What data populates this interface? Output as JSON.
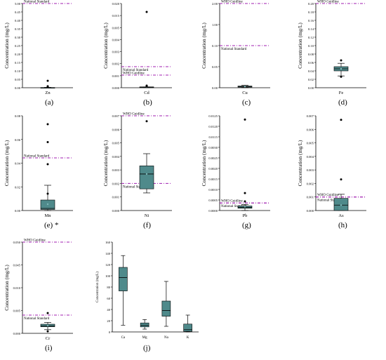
{
  "colors": {
    "box": "#4f8a8b",
    "guide": "#a01fb0",
    "outlier": "#000000",
    "mean": "#7fb8b8"
  },
  "y_title": "Concentration (mg/L)",
  "chart_data": [
    {
      "type": "box",
      "panel_label": "(a)",
      "category": "Zn",
      "ylim": [
        0,
        5
      ],
      "ticks": [
        "0.00",
        "0.05",
        "0.10",
        "0.15",
        "0.20",
        "0.25",
        "0.30",
        "0.35",
        "0.40",
        "0.45",
        "5.00"
      ],
      "box": {
        "whisker_low": 0.0,
        "q1": 0.003,
        "median": 0.005,
        "q3": 0.012,
        "whisker_high": 0.02,
        "mean": 0.012
      },
      "outliers": [
        0.035,
        0.09,
        0.41
      ],
      "guidelines": [
        {
          "label": "National Standard",
          "value": 5.0
        }
      ]
    },
    {
      "type": "box",
      "panel_label": "(b)",
      "category": "Cd",
      "ylim": [
        0,
        0.02
      ],
      "ticks": [
        "0.000",
        "0.001",
        "0.002",
        "0.003",
        "0.004",
        "0.005",
        "0.015",
        "0.020"
      ],
      "box": {
        "whisker_low": 0.0,
        "q1": 0.0,
        "median": 0.0001,
        "q3": 0.0002,
        "whisker_high": 0.0002,
        "mean": 0.0002
      },
      "outliers": [
        0.0003,
        0.0004,
        0.0005,
        0.018
      ],
      "guidelines": [
        {
          "label": "WHO Guidline",
          "value": 0.003
        },
        {
          "label": "National Standard",
          "value": 0.005
        }
      ]
    },
    {
      "type": "box",
      "panel_label": "(c)",
      "category": "Cu",
      "ylim": [
        0,
        2
      ],
      "ticks": [
        "0.00",
        "0.05",
        "0.10",
        "1.00",
        "2.00"
      ],
      "box": {
        "whisker_low": 0.001,
        "q1": 0.015,
        "median": 0.025,
        "q3": 0.04,
        "whisker_high": 0.06,
        "mean": 0.028
      },
      "outliers": [],
      "guidelines": [
        {
          "label": "WHO Guidline",
          "value": 2.0
        },
        {
          "label": "National Standard",
          "value": 1.0
        }
      ]
    },
    {
      "type": "box",
      "panel_label": "(d)",
      "category": "Fe",
      "ylim": [
        0,
        0.2
      ],
      "ticks": [
        "0.00",
        "0.02",
        "0.04",
        "0.06",
        "0.08",
        "0.10",
        "0.12",
        "0.14",
        "0.16",
        "0.18",
        "0.20"
      ],
      "box": {
        "whisker_low": 0.028,
        "q1": 0.04,
        "median": 0.045,
        "q3": 0.05,
        "whisker_high": 0.058,
        "mean": 0.045
      },
      "outliers": [
        0.026,
        0.065
      ],
      "guidelines": [
        {
          "label": "WHO Guidline",
          "value": 0.2
        }
      ]
    },
    {
      "type": "box",
      "panel_label": "(e)",
      "label_suffix": "*",
      "category": "Mn",
      "ylim": [
        0,
        0.09
      ],
      "ticks": [
        "0.00",
        "0.02",
        "0.04",
        "0.06",
        "0.08"
      ],
      "box": {
        "whisker_low": 0.0,
        "q1": 0.001,
        "median": 0.002,
        "q3": 0.01,
        "whisker_high": 0.024,
        "mean": 0.006
      },
      "outliers": [
        0.016,
        0.044,
        0.065,
        0.082
      ],
      "guidelines": [
        {
          "label": "National Standard",
          "value": 0.05
        }
      ]
    },
    {
      "type": "box",
      "panel_label": "(f)",
      "category": "Ni",
      "ylim": [
        0,
        0.007
      ],
      "ticks": [
        "0.000",
        "0.001",
        "0.002",
        "0.003",
        "0.004",
        "0.005",
        "0.006",
        "0.007"
      ],
      "box": {
        "whisker_low": 0.0013,
        "q1": 0.0016,
        "median": 0.0027,
        "q3": 0.0033,
        "whisker_high": 0.0042,
        "mean": 0.0027
      },
      "outliers": [
        0.0066
      ],
      "guidelines": [
        {
          "label": "WHO Guidline",
          "value": 0.007
        },
        {
          "label": "National Standard",
          "value": 0.002
        }
      ]
    },
    {
      "type": "box",
      "panel_label": "(g)",
      "category": "Pb",
      "ylim": [
        0,
        0.0125
      ],
      "ticks": [
        "0.0000",
        "0.0005",
        "0.0010",
        "0.0015",
        "0.0020",
        "0.0025",
        "0.0030",
        "0.0115",
        "0.0120",
        "0.0125"
      ],
      "box": {
        "whisker_low": 0.0,
        "q1": 0.0003,
        "median": 0.0004,
        "q3": 0.0006,
        "whisker_high": 0.0008,
        "mean": 0.0005
      },
      "outliers": [
        0.0012,
        0.0023,
        0.012
      ],
      "guidelines": [
        {
          "label": "WHO Guidline",
          "value": 0.001
        },
        {
          "label": "National Standard",
          "value": 0.001
        }
      ]
    },
    {
      "type": "box",
      "panel_label": "(h)",
      "category": "As",
      "ylim": [
        0,
        0.007
      ],
      "ticks": [
        "0.000",
        "0.001",
        "0.002",
        "0.003",
        "0.004",
        "0.005",
        "0.006",
        "0.007"
      ],
      "box": {
        "whisker_low": 0.0,
        "q1": 0.0,
        "median": 0.0004,
        "q3": 0.0009,
        "whisker_high": 0.0012,
        "mean": 0.0004
      },
      "outliers": [
        0.0023,
        0.0067
      ],
      "guidelines": [
        {
          "label": "WHO Guidline",
          "value": 0.001
        },
        {
          "label": "National Standard",
          "value": 0.001
        }
      ]
    },
    {
      "type": "box",
      "panel_label": "(i)",
      "category": "Cr",
      "ylim": [
        0,
        0.05
      ],
      "ticks": [
        "0.000",
        "0.005",
        "0.010",
        "0.045",
        "0.050"
      ],
      "box": {
        "whisker_low": 0.002,
        "q1": 0.0036,
        "median": 0.004,
        "q3": 0.005,
        "whisker_high": 0.006,
        "mean": 0.0043
      },
      "outliers": [
        0.0011,
        0.0111
      ],
      "guidelines": [
        {
          "label": "WHO Guidline",
          "value": 0.05
        },
        {
          "label": "National Standard",
          "value": 0.01
        }
      ]
    },
    {
      "type": "box",
      "panel_label": "(j)",
      "categories": [
        "Ca",
        "Mg",
        "Na",
        "K"
      ],
      "ylim": [
        0,
        160
      ],
      "ticks": [
        "0",
        "20",
        "40",
        "60",
        "80",
        "100",
        "120",
        "140",
        "160"
      ],
      "boxes": [
        {
          "whisker_low": 12,
          "q1": 73,
          "median": 97,
          "q3": 115,
          "whisker_high": 136
        },
        {
          "whisker_low": 5,
          "q1": 9,
          "median": 12,
          "q3": 16,
          "whisker_high": 22
        },
        {
          "whisker_low": 10,
          "q1": 28,
          "median": 38,
          "q3": 55,
          "whisker_high": 90
        },
        {
          "whisker_low": 0,
          "q1": 1,
          "median": 4,
          "q3": 14,
          "whisker_high": 30
        }
      ],
      "outliers": [],
      "guidelines": []
    }
  ]
}
